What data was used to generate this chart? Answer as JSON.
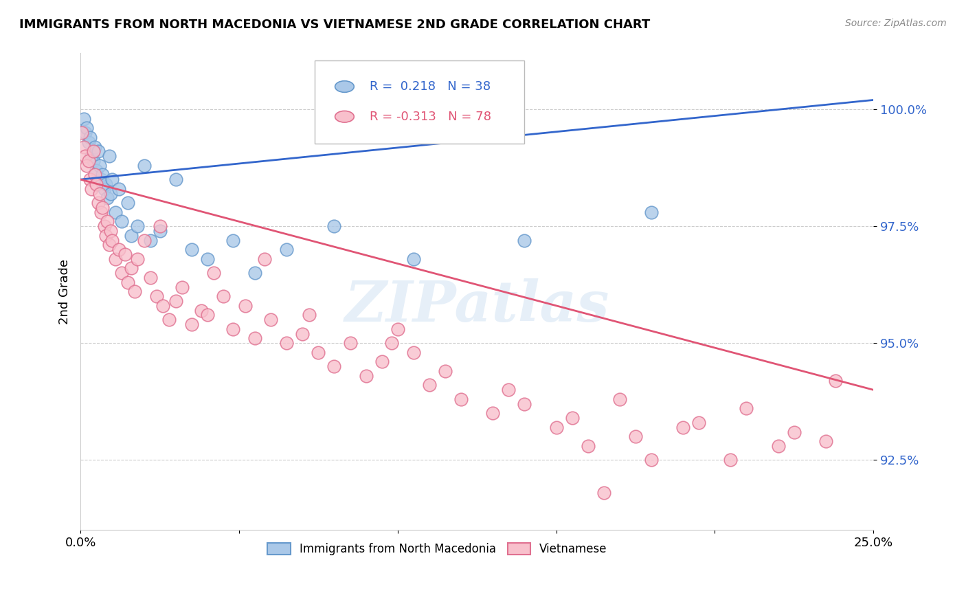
{
  "title": "IMMIGRANTS FROM NORTH MACEDONIA VS VIETNAMESE 2ND GRADE CORRELATION CHART",
  "source": "Source: ZipAtlas.com",
  "ylabel": "2nd Grade",
  "y_ticks": [
    92.5,
    95.0,
    97.5,
    100.0
  ],
  "y_tick_labels": [
    "92.5%",
    "95.0%",
    "97.5%",
    "100.0%"
  ],
  "x_range": [
    0.0,
    25.0
  ],
  "y_range": [
    91.0,
    101.2
  ],
  "blue_R": 0.218,
  "blue_N": 38,
  "pink_R": -0.313,
  "pink_N": 78,
  "blue_color_face": "#aac8e8",
  "blue_color_edge": "#6699cc",
  "pink_color_face": "#f8c0cc",
  "pink_color_edge": "#e07090",
  "blue_line_color": "#3366cc",
  "pink_line_color": "#e05575",
  "watermark": "ZIPatlas",
  "blue_scatter_x": [
    0.1,
    0.15,
    0.2,
    0.25,
    0.3,
    0.35,
    0.4,
    0.45,
    0.5,
    0.55,
    0.6,
    0.65,
    0.7,
    0.75,
    0.8,
    0.85,
    0.9,
    0.95,
    1.0,
    1.1,
    1.2,
    1.3,
    1.5,
    1.6,
    1.8,
    2.0,
    2.2,
    2.5,
    3.0,
    3.5,
    4.0,
    4.8,
    5.5,
    6.5,
    8.0,
    10.5,
    14.0,
    18.0
  ],
  "blue_scatter_y": [
    99.8,
    99.5,
    99.6,
    99.3,
    99.4,
    99.0,
    98.9,
    99.2,
    98.7,
    99.1,
    98.8,
    98.5,
    98.6,
    98.3,
    98.4,
    98.1,
    99.0,
    98.2,
    98.5,
    97.8,
    98.3,
    97.6,
    98.0,
    97.3,
    97.5,
    98.8,
    97.2,
    97.4,
    98.5,
    97.0,
    96.8,
    97.2,
    96.5,
    97.0,
    97.5,
    96.8,
    97.2,
    97.8
  ],
  "pink_scatter_x": [
    0.05,
    0.1,
    0.15,
    0.2,
    0.25,
    0.3,
    0.35,
    0.4,
    0.45,
    0.5,
    0.55,
    0.6,
    0.65,
    0.7,
    0.75,
    0.8,
    0.85,
    0.9,
    0.95,
    1.0,
    1.1,
    1.2,
    1.3,
    1.4,
    1.5,
    1.6,
    1.7,
    1.8,
    2.0,
    2.2,
    2.4,
    2.6,
    2.8,
    3.0,
    3.2,
    3.5,
    3.8,
    4.0,
    4.5,
    4.8,
    5.2,
    5.5,
    6.0,
    6.5,
    7.0,
    7.5,
    8.0,
    8.5,
    9.0,
    9.5,
    10.5,
    11.0,
    12.0,
    13.0,
    14.0,
    15.0,
    16.0,
    17.5,
    18.0,
    19.5,
    21.0,
    22.5,
    23.5,
    2.5,
    4.2,
    5.8,
    7.2,
    9.8,
    11.5,
    13.5,
    15.5,
    17.0,
    19.0,
    20.5,
    22.0,
    23.8,
    10.0,
    16.5
  ],
  "pink_scatter_y": [
    99.5,
    99.2,
    99.0,
    98.8,
    98.9,
    98.5,
    98.3,
    99.1,
    98.6,
    98.4,
    98.0,
    98.2,
    97.8,
    97.9,
    97.5,
    97.3,
    97.6,
    97.1,
    97.4,
    97.2,
    96.8,
    97.0,
    96.5,
    96.9,
    96.3,
    96.6,
    96.1,
    96.8,
    97.2,
    96.4,
    96.0,
    95.8,
    95.5,
    95.9,
    96.2,
    95.4,
    95.7,
    95.6,
    96.0,
    95.3,
    95.8,
    95.1,
    95.5,
    95.0,
    95.2,
    94.8,
    94.5,
    95.0,
    94.3,
    94.6,
    94.8,
    94.1,
    93.8,
    93.5,
    93.7,
    93.2,
    92.8,
    93.0,
    92.5,
    93.3,
    93.6,
    93.1,
    92.9,
    97.5,
    96.5,
    96.8,
    95.6,
    95.0,
    94.4,
    94.0,
    93.4,
    93.8,
    93.2,
    92.5,
    92.8,
    94.2,
    95.3,
    91.8
  ]
}
